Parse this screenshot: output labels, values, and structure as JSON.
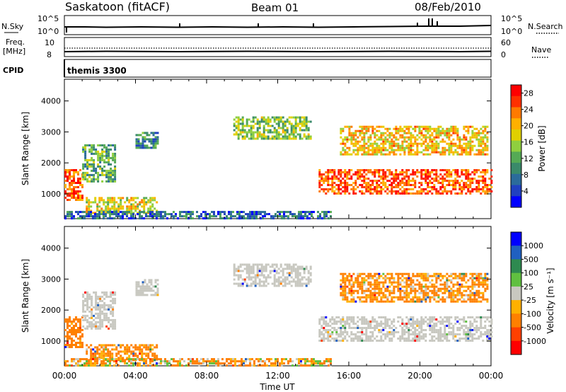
{
  "header": {
    "station": "Saskatoon (fitACF)",
    "beam": "Beam 01",
    "date": "08/Feb/2010"
  },
  "top_panels": {
    "nsky_label": "N.Sky",
    "nsky_ticks": [
      "10^5",
      "10^0"
    ],
    "nsearch_label": "N.Search",
    "freq_label_1": "Freq.",
    "freq_label_2": "[MHz]",
    "freq_ticks": [
      "10",
      "8"
    ],
    "nave_ticks": [
      "60",
      "0"
    ],
    "nave_label": "Nave",
    "cpid_label": "CPID",
    "cpid_value": "themis 3300"
  },
  "colors": {
    "power_scale": [
      "#0000ff",
      "#2040c0",
      "#2b6b9b",
      "#3a8a6a",
      "#55aa55",
      "#8fcf3f",
      "#e0d000",
      "#ffb000",
      "#ff7a00",
      "#ff3000",
      "#ff0000"
    ],
    "velocity_scale": [
      "#0000ff",
      "#2060c0",
      "#2e8a50",
      "#60c040",
      "#c8c8c0",
      "#ffb000",
      "#ff8000",
      "#ff4000",
      "#ff0000"
    ],
    "ground_scatter": "#c8c8c0"
  },
  "chart_data": [
    {
      "type": "heatmap",
      "title": "",
      "ylabel": "Slant Range [km]",
      "xlabel": "",
      "x_ticks": [
        "00:00",
        "04:00",
        "08:00",
        "12:00",
        "16:00",
        "20:00",
        "00:00"
      ],
      "y_ticks": [
        "1000",
        "2000",
        "3000",
        "4000"
      ],
      "ylim": [
        200,
        4700
      ],
      "xlim_hours": [
        0,
        24
      ],
      "colorbar": {
        "label": "Power [dB]",
        "ticks": [
          "4",
          "8",
          "12",
          "16",
          "20",
          "24",
          "28"
        ],
        "range": [
          0,
          30
        ]
      },
      "echo_regions": [
        {
          "t0": 0.0,
          "t1": 1.0,
          "r0": 800,
          "r1": 1800,
          "power": 26
        },
        {
          "t0": 1.0,
          "t1": 2.9,
          "r0": 1400,
          "r1": 2600,
          "power": 12
        },
        {
          "t0": 1.2,
          "t1": 5.2,
          "r0": 400,
          "r1": 900,
          "power": 18
        },
        {
          "t0": 4.0,
          "t1": 5.2,
          "r0": 2500,
          "r1": 3000,
          "power": 8
        },
        {
          "t0": 9.5,
          "t1": 13.8,
          "r0": 2800,
          "r1": 3500,
          "power": 14
        },
        {
          "t0": 14.3,
          "t1": 24.0,
          "r0": 1000,
          "r1": 1800,
          "power": 26
        },
        {
          "t0": 15.5,
          "t1": 23.8,
          "r0": 2300,
          "r1": 3200,
          "power": 20
        },
        {
          "t0": 0.0,
          "t1": 15.0,
          "r0": 200,
          "r1": 450,
          "power": 6
        }
      ]
    },
    {
      "type": "heatmap",
      "title": "",
      "ylabel": "Slant Range [km]",
      "xlabel": "Time UT",
      "x_ticks": [
        "00:00",
        "04:00",
        "08:00",
        "12:00",
        "16:00",
        "20:00",
        "00:00"
      ],
      "y_ticks": [
        "1000",
        "2000",
        "3000",
        "4000"
      ],
      "ylim": [
        200,
        4700
      ],
      "xlim_hours": [
        0,
        24
      ],
      "colorbar": {
        "label": "Velocity [m s⁻¹]",
        "ticks": [
          "1000",
          "500",
          "100",
          "25",
          "-25",
          "-100",
          "-500",
          "-1000"
        ],
        "range": [
          -1000,
          1000
        ]
      },
      "echo_regions": [
        {
          "t0": 0.0,
          "t1": 1.0,
          "r0": 800,
          "r1": 1800,
          "velocity": -300
        },
        {
          "t0": 1.0,
          "t1": 2.9,
          "r0": 1400,
          "r1": 2600,
          "velocity": 0
        },
        {
          "t0": 1.2,
          "t1": 5.2,
          "r0": 400,
          "r1": 900,
          "velocity": -200
        },
        {
          "t0": 4.0,
          "t1": 5.2,
          "r0": 2500,
          "r1": 3000,
          "velocity": 0
        },
        {
          "t0": 9.5,
          "t1": 13.8,
          "r0": 2800,
          "r1": 3500,
          "velocity": 0
        },
        {
          "t0": 14.3,
          "t1": 24.0,
          "r0": 1000,
          "r1": 1800,
          "velocity": 0
        },
        {
          "t0": 15.5,
          "t1": 23.8,
          "r0": 2300,
          "r1": 3200,
          "velocity": -200
        },
        {
          "t0": 0.0,
          "t1": 15.0,
          "r0": 200,
          "r1": 450,
          "velocity": -100
        }
      ]
    }
  ]
}
